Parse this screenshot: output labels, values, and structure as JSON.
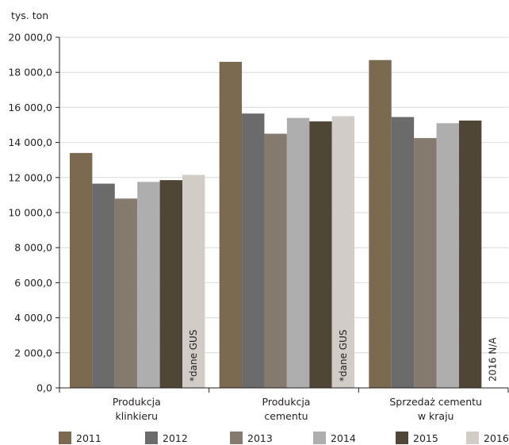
{
  "chart_data": {
    "type": "bar",
    "ylabel": "tys. ton",
    "ylim": [
      0,
      20000
    ],
    "ytick_step": 2000,
    "ytick_labels": [
      "0,0",
      "2 000,0",
      "4 000,0",
      "6 000,0",
      "8 000,0",
      "10 000,0",
      "12 000,0",
      "14 000,0",
      "16 000,0",
      "18 000,0",
      "20 000,0"
    ],
    "grid": true,
    "legend_position": "bottom",
    "categories": [
      [
        "Produkcja",
        "klinkieru"
      ],
      [
        "Produkcja",
        "cementu"
      ],
      [
        "Sprzedaż cementu",
        "w kraju"
      ]
    ],
    "series": [
      {
        "name": "2011",
        "color": "#7b6a50",
        "values": [
          13400,
          18600,
          18700
        ]
      },
      {
        "name": "2012",
        "color": "#6b6b6b",
        "values": [
          11650,
          15650,
          15450
        ]
      },
      {
        "name": "2013",
        "color": "#857a6e",
        "values": [
          10800,
          14500,
          14250
        ]
      },
      {
        "name": "2014",
        "color": "#aeaeae",
        "values": [
          11750,
          15400,
          15100
        ]
      },
      {
        "name": "2015",
        "color": "#4f4636",
        "values": [
          11850,
          15200,
          15250
        ]
      },
      {
        "name": "2016",
        "color": "#d1ccc6",
        "values": [
          12150,
          15500,
          null
        ]
      }
    ],
    "annotations": [
      {
        "category": 0,
        "series": 5,
        "text": "*dane GUS"
      },
      {
        "category": 1,
        "series": 5,
        "text": "*dane GUS"
      },
      {
        "category": 2,
        "series": 5,
        "text": "2016 N/A"
      }
    ]
  }
}
